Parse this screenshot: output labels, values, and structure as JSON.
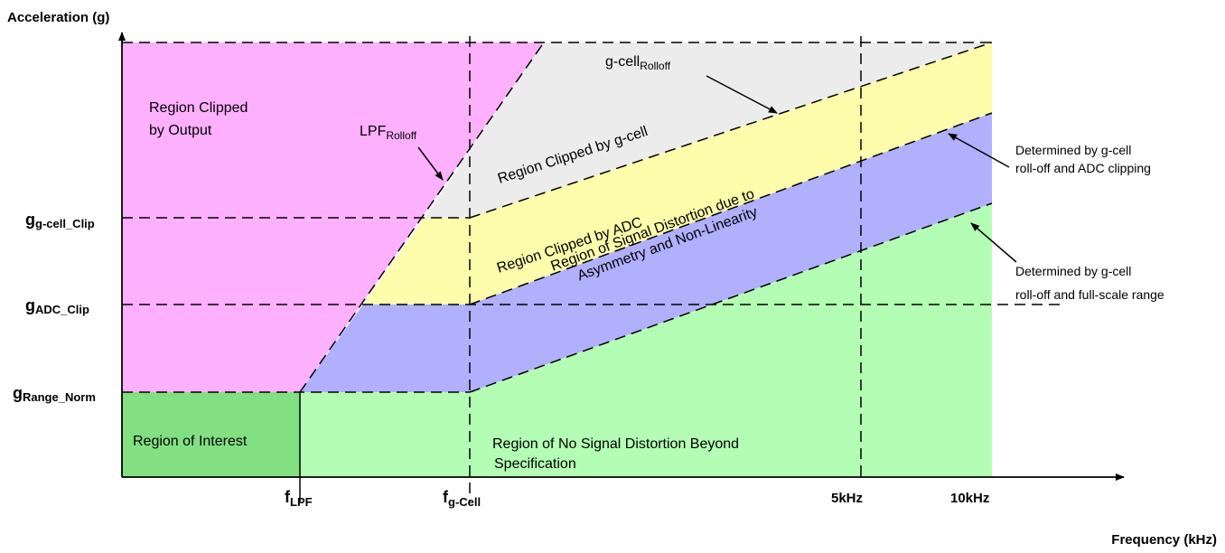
{
  "axes": {
    "y_title": "Acceleration (g)",
    "x_title": "Frequency (kHz)"
  },
  "y_levels": [
    {
      "main": "g",
      "sub": "g-cell_Clip"
    },
    {
      "main": "g",
      "sub": "ADC_Clip"
    },
    {
      "main": "g",
      "sub": "Range_Norm"
    }
  ],
  "x_ticks": [
    {
      "main": "f",
      "sub": "LPF"
    },
    {
      "main": "f",
      "sub": "g-Cell"
    },
    {
      "main": "5kHz",
      "sub": ""
    },
    {
      "main": "10kHz",
      "sub": ""
    }
  ],
  "regions": {
    "clipped_output": [
      "Region Clipped",
      "by Output"
    ],
    "interest": "Region of Interest",
    "no_distortion": [
      "Region of No Signal Distortion Beyond",
      "Specification"
    ],
    "clipped_gcell": "Region Clipped by g-cell",
    "clipped_adc": "Region Clipped by ADC",
    "distortion": [
      "Region of Signal Distortion due to",
      "Asymmetry and Non-Linearity"
    ]
  },
  "rolloff_labels": {
    "lpf": {
      "main": "LPF",
      "sub": "Rolloff"
    },
    "gcell": {
      "main": "g-cell",
      "sub": "Rolloff"
    }
  },
  "annotations": {
    "adc_clipping": [
      "Determined by g-cell",
      "roll-off and ADC clipping"
    ],
    "full_scale": [
      "Determined by g-cell",
      "roll-off and full-scale range"
    ]
  },
  "colors": {
    "magenta": "#fdb0fd",
    "green_dark": "#82e082",
    "green_light": "#b4fdb4",
    "grey": "#ececec",
    "yellow": "#fdfdac",
    "blue": "#b0b0fd"
  }
}
